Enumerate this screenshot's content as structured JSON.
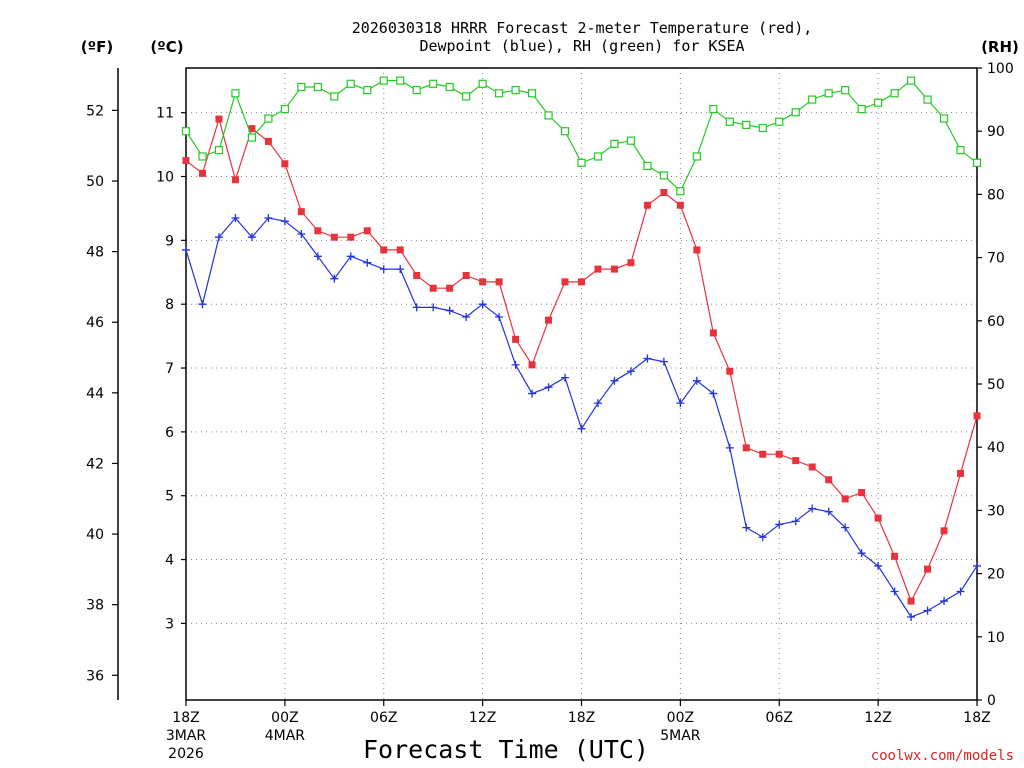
{
  "chart_data": {
    "type": "line",
    "title": "2026030318 HRRR Forecast 2-meter Temperature (red),",
    "title_line2": "Dewpoint (blue), RH (green) for KSEA",
    "xlabel": "Forecast Time (UTC)",
    "credit": "coolwx.com/models",
    "colors": {
      "temperature": "#e8333c",
      "dewpoint": "#2233dd",
      "rh": "#22cc22",
      "credit": "#dd2222",
      "grid": "#888888",
      "axis": "#000000"
    },
    "unit_labels": {
      "fahrenheit": "(ºF)",
      "celsius": "(ºC)",
      "rh": "(RH)"
    },
    "x_range_hours": [
      0,
      48
    ],
    "x_ticks": [
      {
        "hour": 0,
        "label": "18Z",
        "date": "3MAR",
        "year": "2026"
      },
      {
        "hour": 6,
        "label": "00Z",
        "date": "4MAR",
        "year": ""
      },
      {
        "hour": 12,
        "label": "06Z",
        "date": "",
        "year": ""
      },
      {
        "hour": 18,
        "label": "12Z",
        "date": "",
        "year": ""
      },
      {
        "hour": 24,
        "label": "18Z",
        "date": "",
        "year": ""
      },
      {
        "hour": 30,
        "label": "00Z",
        "date": "5MAR",
        "year": ""
      },
      {
        "hour": 36,
        "label": "06Z",
        "date": "",
        "year": ""
      },
      {
        "hour": 42,
        "label": "12Z",
        "date": "",
        "year": ""
      },
      {
        "hour": 48,
        "label": "18Z",
        "date": "",
        "year": ""
      }
    ],
    "y_left_f": {
      "range": [
        35.3,
        53.2
      ],
      "ticks": [
        "36",
        "38",
        "40",
        "42",
        "44",
        "46",
        "48",
        "50",
        "52"
      ]
    },
    "y_left_c": {
      "range": [
        1.8,
        11.7
      ],
      "ticks": [
        "3",
        "4",
        "5",
        "6",
        "7",
        "8",
        "9",
        "10",
        "11"
      ]
    },
    "y_right_rh": {
      "range": [
        0,
        100
      ],
      "ticks": [
        "0",
        "10",
        "20",
        "30",
        "40",
        "50",
        "60",
        "70",
        "80",
        "90",
        "100"
      ]
    },
    "series": [
      {
        "name": "Temperature",
        "unit": "C",
        "marker": "filled-square",
        "values": [
          10.25,
          10.05,
          10.9,
          9.95,
          10.75,
          10.55,
          10.2,
          9.45,
          9.15,
          9.05,
          9.05,
          9.15,
          8.85,
          8.85,
          8.45,
          8.25,
          8.25,
          8.45,
          8.35,
          8.35,
          7.45,
          7.05,
          7.75,
          8.35,
          8.35,
          8.55,
          8.55,
          8.65,
          9.55,
          9.75,
          9.55,
          8.85,
          7.55,
          6.95,
          5.75,
          5.65,
          5.65,
          5.55,
          5.45,
          5.25,
          4.95,
          5.05,
          4.65,
          4.05,
          3.35,
          3.85,
          4.45,
          5.35,
          6.25
        ]
      },
      {
        "name": "Dewpoint",
        "unit": "C",
        "marker": "plus",
        "values": [
          8.85,
          8.0,
          9.05,
          9.35,
          9.05,
          9.35,
          9.3,
          9.1,
          8.75,
          8.4,
          8.75,
          8.65,
          8.55,
          8.55,
          7.95,
          7.95,
          7.9,
          7.8,
          8.0,
          7.8,
          7.05,
          6.6,
          6.7,
          6.85,
          6.05,
          6.45,
          6.8,
          6.95,
          7.15,
          7.1,
          6.45,
          6.8,
          6.6,
          5.75,
          4.5,
          4.35,
          4.55,
          4.6,
          4.8,
          4.75,
          4.5,
          4.1,
          3.9,
          3.5,
          3.1,
          3.2,
          3.35,
          3.5,
          3.9
        ]
      },
      {
        "name": "RH",
        "unit": "%",
        "marker": "open-square",
        "values": [
          90,
          86,
          87,
          96,
          89,
          92,
          93.5,
          97,
          97,
          95.5,
          97.5,
          96.5,
          98,
          98,
          96.5,
          97.5,
          97,
          95.5,
          97.5,
          96,
          96.5,
          96,
          92.5,
          90,
          85,
          86,
          88,
          88.5,
          84.5,
          83,
          80.5,
          86,
          93.5,
          91.5,
          91,
          90.5,
          91.5,
          93,
          95,
          96,
          96.5,
          93.5,
          94.5,
          96,
          98,
          95,
          92,
          87,
          85
        ]
      }
    ]
  }
}
